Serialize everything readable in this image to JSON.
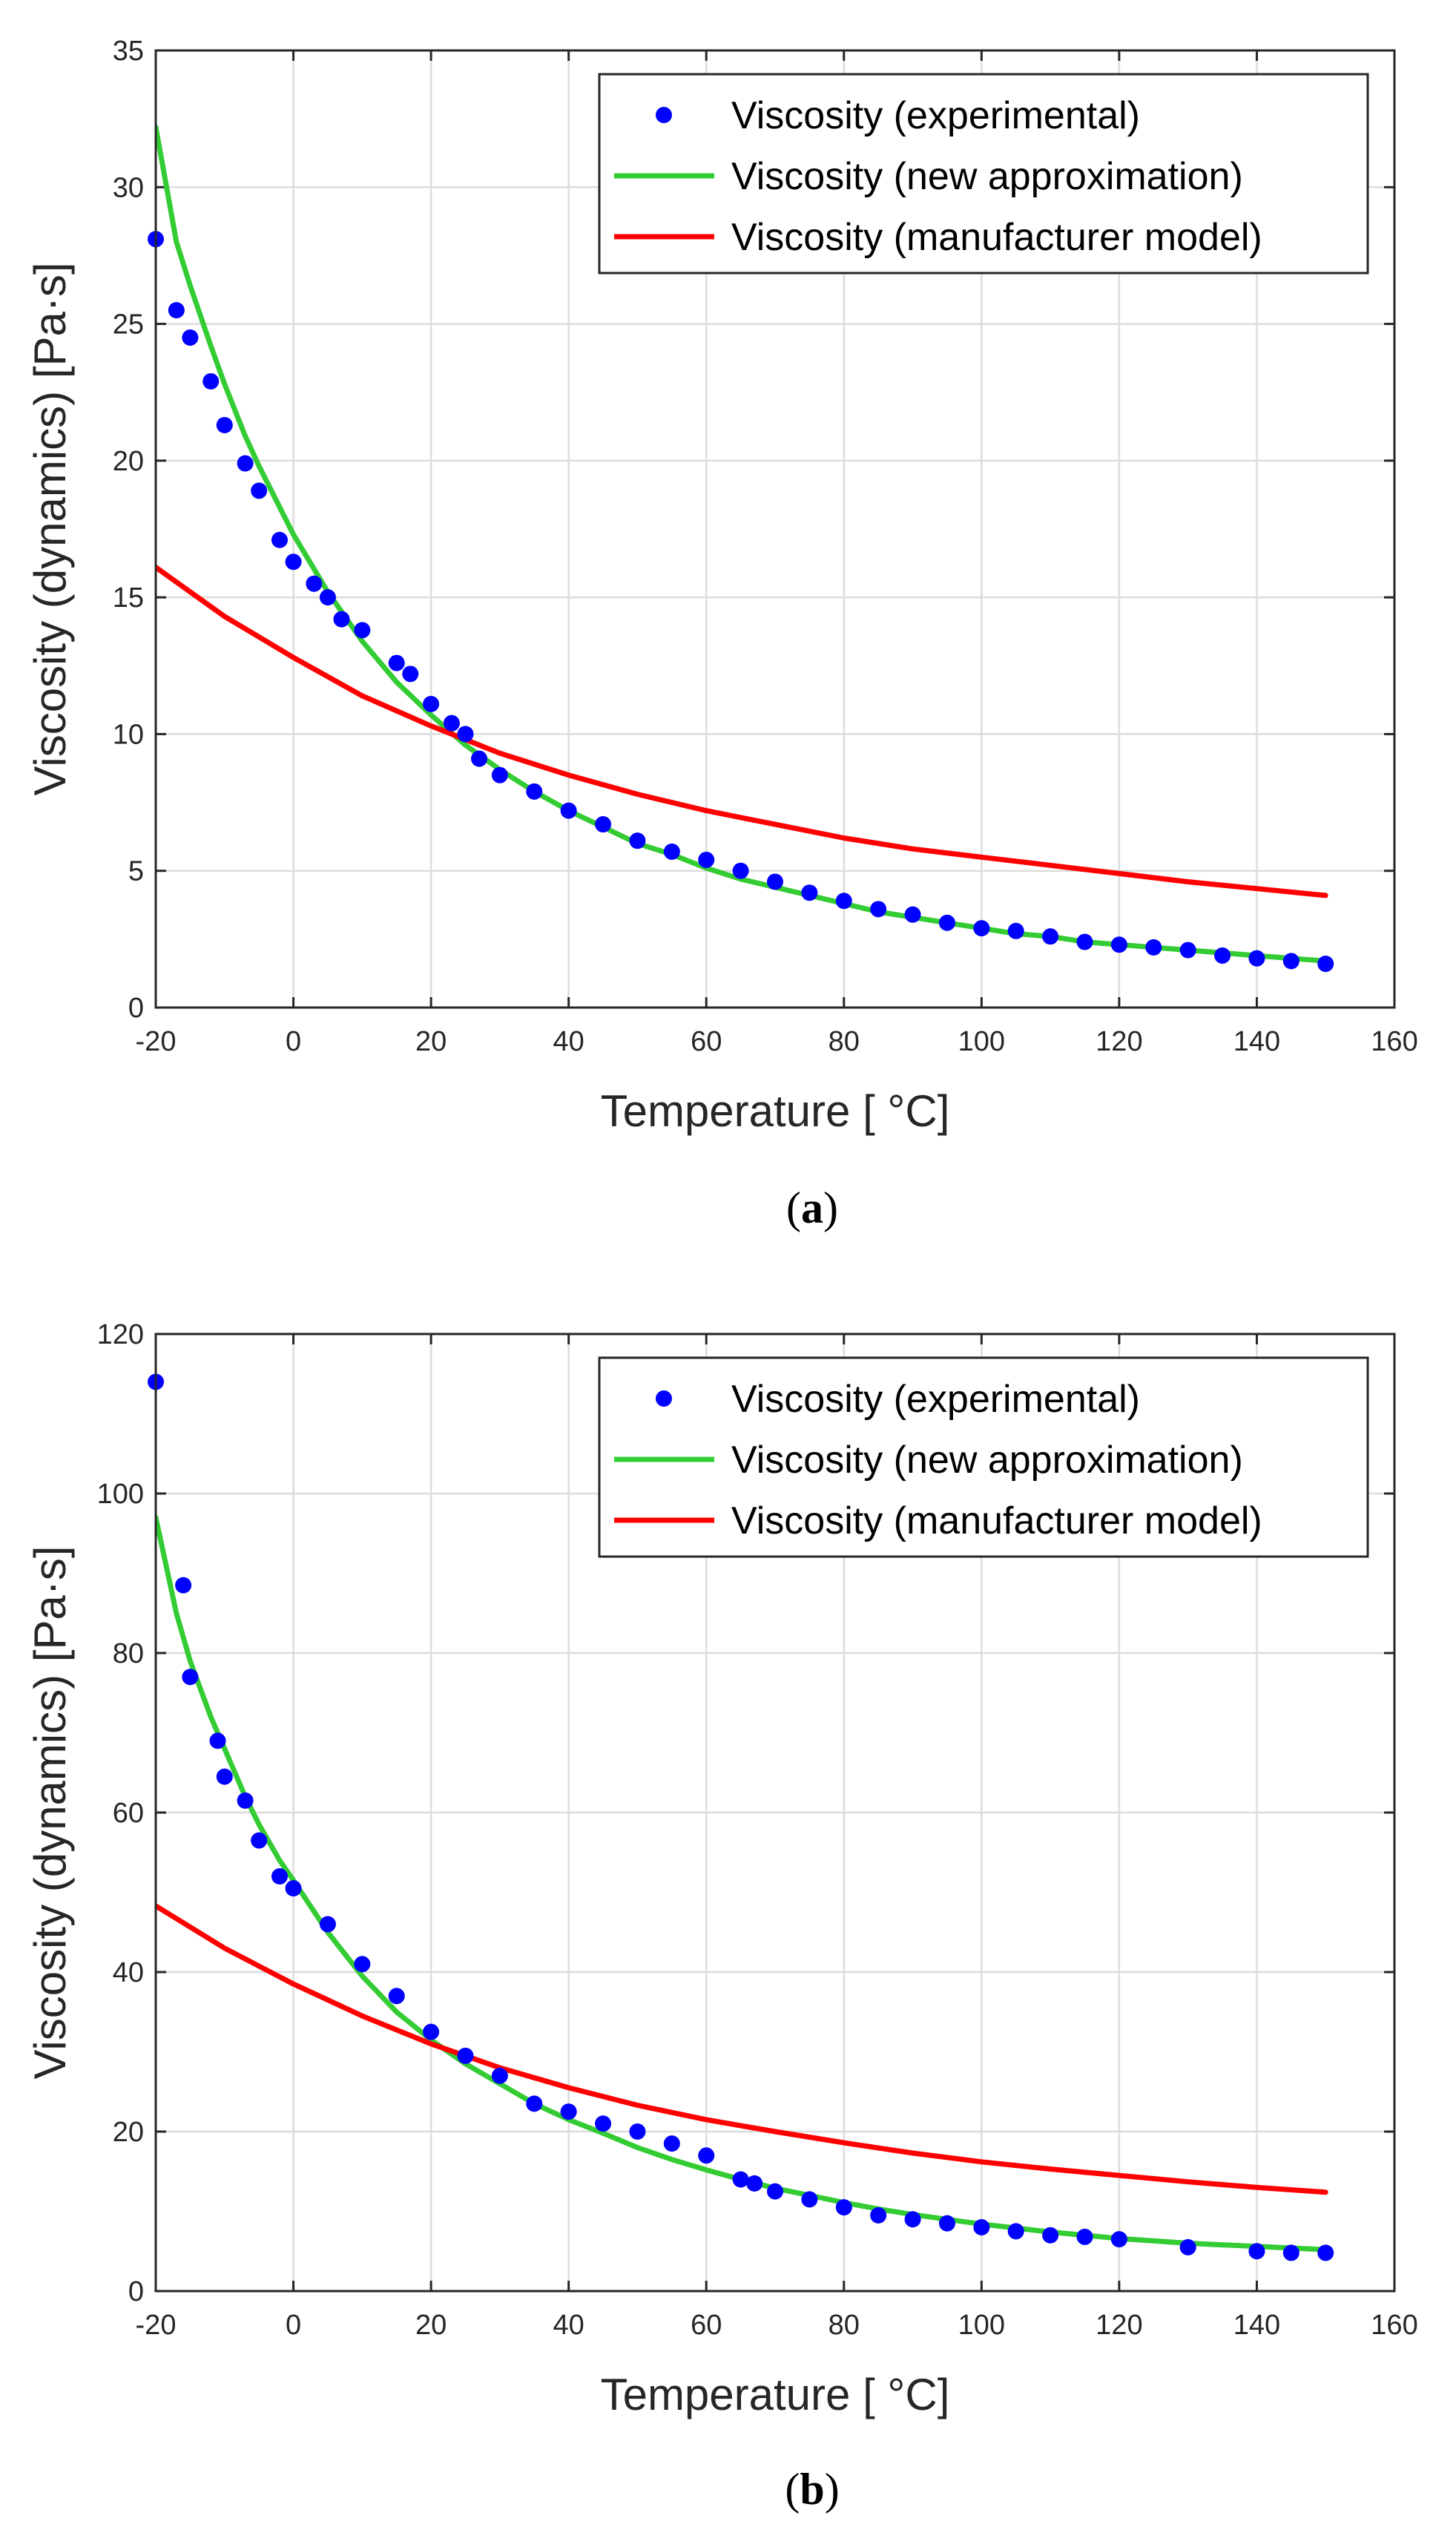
{
  "colors": {
    "experimental": "#0000ff",
    "approximation": "#33cc33",
    "manufacturer": "#ff0000",
    "axis": "#262626",
    "grid": "#dcdcdc"
  },
  "chart_data": [
    {
      "type": "line",
      "caption_open": "(",
      "caption_letter": "a",
      "caption_close": ")",
      "xlabel": "Temperature [ °C]",
      "ylabel": "Viscosity (dynamics) [Pa·s]",
      "xlim": [
        -20,
        160
      ],
      "ylim": [
        0,
        35
      ],
      "xticks": [
        -20,
        0,
        20,
        40,
        60,
        80,
        100,
        120,
        140,
        160
      ],
      "yticks": [
        0,
        5,
        10,
        15,
        20,
        25,
        30,
        35
      ],
      "grid": true,
      "legend_position": "top-right",
      "series": [
        {
          "name": "Viscosity (experimental)",
          "style": "markers",
          "color": "#0000ff",
          "x": [
            -20,
            -17,
            -15,
            -12,
            -10,
            -7,
            -5,
            -2,
            0,
            3,
            5,
            7,
            10,
            15,
            17,
            20,
            23,
            25,
            27,
            30,
            35,
            40,
            45,
            50,
            55,
            60,
            65,
            70,
            75,
            80,
            85,
            90,
            95,
            100,
            105,
            110,
            115,
            120,
            125,
            130,
            135,
            140,
            145,
            150
          ],
          "y": [
            28.1,
            25.5,
            24.5,
            22.9,
            21.3,
            19.9,
            18.9,
            17.1,
            16.3,
            15.5,
            15.0,
            14.2,
            13.8,
            12.6,
            12.2,
            11.1,
            10.4,
            10.0,
            9.1,
            8.5,
            7.9,
            7.2,
            6.7,
            6.1,
            5.7,
            5.4,
            5.0,
            4.6,
            4.2,
            3.9,
            3.6,
            3.4,
            3.1,
            2.9,
            2.8,
            2.6,
            2.4,
            2.3,
            2.2,
            2.1,
            1.9,
            1.8,
            1.7,
            1.6
          ]
        },
        {
          "name": "Viscosity (new approximation)",
          "style": "line",
          "color": "#33cc33",
          "x": [
            -20,
            -17,
            -15,
            -12,
            -10,
            -7,
            -5,
            -2,
            0,
            5,
            10,
            15,
            20,
            25,
            30,
            35,
            40,
            45,
            50,
            55,
            60,
            65,
            70,
            75,
            80,
            85,
            90,
            95,
            100,
            105,
            110,
            115,
            120,
            125,
            130,
            135,
            140,
            145,
            150
          ],
          "y": [
            32.2,
            28.0,
            26.4,
            24.2,
            22.8,
            20.9,
            19.8,
            18.3,
            17.3,
            15.2,
            13.4,
            11.9,
            10.7,
            9.6,
            8.7,
            7.9,
            7.2,
            6.6,
            6.0,
            5.6,
            5.1,
            4.7,
            4.4,
            4.1,
            3.8,
            3.5,
            3.3,
            3.1,
            2.9,
            2.7,
            2.6,
            2.4,
            2.3,
            2.2,
            2.1,
            2.0,
            1.9,
            1.8,
            1.7
          ]
        },
        {
          "name": "Viscosity (manufacturer model)",
          "style": "line",
          "color": "#ff0000",
          "x": [
            -20,
            -10,
            0,
            10,
            20,
            30,
            40,
            50,
            60,
            70,
            80,
            90,
            100,
            110,
            120,
            130,
            140,
            150
          ],
          "y": [
            16.1,
            14.3,
            12.8,
            11.4,
            10.3,
            9.3,
            8.5,
            7.8,
            7.2,
            6.7,
            6.2,
            5.8,
            5.5,
            5.2,
            4.9,
            4.6,
            4.35,
            4.1
          ]
        }
      ]
    },
    {
      "type": "line",
      "caption_open": "(",
      "caption_letter": "b",
      "caption_close": ")",
      "xlabel": "Temperature [ °C]",
      "ylabel": "Viscosity (dynamics) [Pa·s]",
      "xlim": [
        -20,
        160
      ],
      "ylim": [
        0,
        120
      ],
      "xticks": [
        -20,
        0,
        20,
        40,
        60,
        80,
        100,
        120,
        140,
        160
      ],
      "yticks": [
        0,
        20,
        40,
        60,
        80,
        100,
        120
      ],
      "grid": true,
      "legend_position": "top-right",
      "series": [
        {
          "name": "Viscosity (experimental)",
          "style": "markers",
          "color": "#0000ff",
          "x": [
            -20,
            -16,
            -15,
            -11,
            -10,
            -7,
            -5,
            -2,
            0,
            5,
            10,
            15,
            20,
            25,
            30,
            35,
            40,
            45,
            50,
            55,
            60,
            65,
            67,
            70,
            75,
            80,
            85,
            90,
            95,
            100,
            105,
            110,
            115,
            120,
            130,
            140,
            145,
            150
          ],
          "y": [
            114,
            88.5,
            77,
            69,
            64.5,
            61.5,
            56.5,
            52,
            50.5,
            46,
            41,
            37,
            32.5,
            29.5,
            27,
            23.5,
            22.5,
            21,
            20,
            18.5,
            17,
            14,
            13.5,
            12.5,
            11.5,
            10.5,
            9.5,
            9.0,
            8.5,
            8.0,
            7.5,
            7.0,
            6.8,
            6.5,
            5.5,
            5.0,
            4.8,
            4.8
          ]
        },
        {
          "name": "Viscosity (new approximation)",
          "style": "line",
          "color": "#33cc33",
          "x": [
            -20,
            -17,
            -15,
            -12,
            -10,
            -7,
            -5,
            -2,
            0,
            5,
            10,
            15,
            20,
            25,
            30,
            35,
            40,
            45,
            50,
            55,
            60,
            65,
            70,
            75,
            80,
            85,
            90,
            95,
            100,
            110,
            120,
            130,
            140,
            150
          ],
          "y": [
            97,
            85,
            79,
            72,
            68,
            62,
            58.5,
            54,
            51.5,
            45,
            39.5,
            35,
            31.5,
            28.5,
            26,
            23.5,
            21.5,
            19.8,
            18.0,
            16.5,
            15.2,
            14.0,
            12.9,
            12.0,
            11.1,
            10.3,
            9.6,
            9.0,
            8.4,
            7.4,
            6.6,
            6.0,
            5.6,
            5.2
          ]
        },
        {
          "name": "Viscosity (manufacturer model)",
          "style": "line",
          "color": "#ff0000",
          "x": [
            -20,
            -10,
            0,
            10,
            20,
            30,
            40,
            50,
            60,
            70,
            80,
            90,
            100,
            110,
            120,
            130,
            140,
            150
          ],
          "y": [
            48.3,
            43.0,
            38.5,
            34.5,
            31.0,
            28.0,
            25.5,
            23.3,
            21.5,
            20.0,
            18.6,
            17.3,
            16.2,
            15.3,
            14.5,
            13.7,
            13.0,
            12.4
          ]
        }
      ]
    }
  ]
}
